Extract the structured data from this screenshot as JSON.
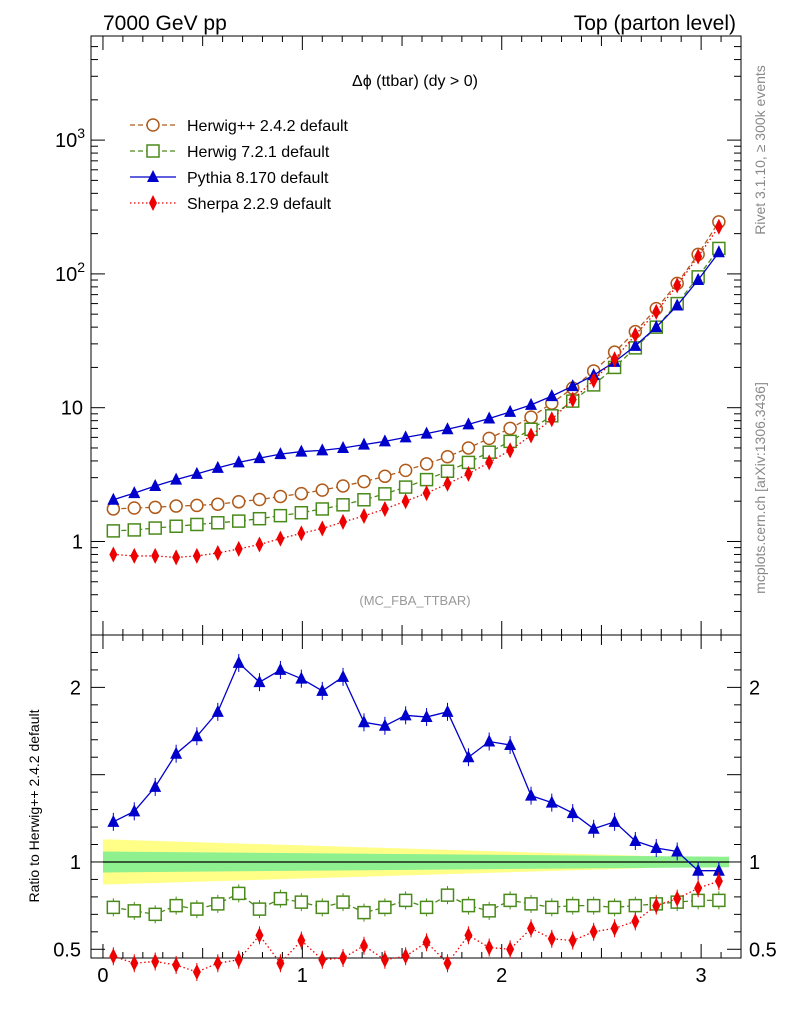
{
  "header": {
    "left": "7000 GeV pp",
    "right": "Top (parton level)"
  },
  "side_text": {
    "rivet": "Rivet 3.1.10, ≥ 300k events",
    "mcplots": "mcplots.cern.ch [arXiv:1306.3436]"
  },
  "watermark": "(MC_FBA_TTBAR)",
  "chart_data": [
    {
      "type": "line",
      "title": "Δϕ (ttbar) (dy > 0)",
      "yscale": "log",
      "ylim": [
        0.2,
        6000
      ],
      "xlim": [
        -0.06,
        3.2
      ],
      "legend_placement": "top-left",
      "yticks": [
        {
          "value": 1,
          "label": "1"
        },
        {
          "value": 10,
          "label": "10"
        },
        {
          "value": 100,
          "label": "10",
          "sup": "2"
        },
        {
          "value": 1000,
          "label": "10",
          "sup": "3"
        }
      ],
      "x": [
        0.052,
        0.157,
        0.262,
        0.367,
        0.471,
        0.576,
        0.681,
        0.785,
        0.89,
        0.995,
        1.1,
        1.204,
        1.309,
        1.414,
        1.518,
        1.623,
        1.728,
        1.833,
        1.937,
        2.042,
        2.147,
        2.251,
        2.356,
        2.461,
        2.566,
        2.67,
        2.775,
        2.88,
        2.985,
        3.089
      ],
      "series": [
        {
          "name": "Herwig++ 2.4.2 default",
          "color": "#b05a1a",
          "marker": "open-circle",
          "style": "dashed",
          "values": [
            1.75,
            1.78,
            1.8,
            1.84,
            1.86,
            1.9,
            1.98,
            2.06,
            2.17,
            2.28,
            2.42,
            2.6,
            2.8,
            3.07,
            3.4,
            3.8,
            4.3,
            5.0,
            5.9,
            7.0,
            8.5,
            10.8,
            14.0,
            18.8,
            26.0,
            37.0,
            55.0,
            85.0,
            140.0,
            245.0
          ]
        },
        {
          "name": "Herwig 7.2.1 default",
          "color": "#4a8a1a",
          "marker": "open-square",
          "style": "dashed",
          "values": [
            1.2,
            1.22,
            1.26,
            1.3,
            1.34,
            1.38,
            1.42,
            1.48,
            1.56,
            1.64,
            1.75,
            1.88,
            2.05,
            2.27,
            2.55,
            2.9,
            3.35,
            3.9,
            4.65,
            5.6,
            6.9,
            8.7,
            11.2,
            14.8,
            20.0,
            28.0,
            40.0,
            60.0,
            95.0,
            155.0
          ]
        },
        {
          "name": "Pythia 8.170 default",
          "color": "#0000cc",
          "marker": "filled-triangle",
          "style": "solid",
          "values": [
            2.05,
            2.3,
            2.6,
            2.9,
            3.2,
            3.55,
            3.9,
            4.2,
            4.5,
            4.7,
            4.8,
            5.0,
            5.3,
            5.6,
            6.0,
            6.4,
            6.9,
            7.5,
            8.3,
            9.3,
            10.5,
            12.2,
            14.5,
            17.5,
            22.0,
            29.0,
            40.0,
            58.0,
            90.0,
            145.0
          ]
        },
        {
          "name": "Sherpa 2.2.9 default",
          "color": "#ee0000",
          "marker": "filled-diamond",
          "style": "dotted",
          "values": [
            0.8,
            0.78,
            0.78,
            0.76,
            0.78,
            0.82,
            0.88,
            0.95,
            1.05,
            1.15,
            1.25,
            1.4,
            1.55,
            1.75,
            2.0,
            2.3,
            2.7,
            3.2,
            3.9,
            4.8,
            6.2,
            8.2,
            11.5,
            16.0,
            23.0,
            35.0,
            52.0,
            82.0,
            135.0,
            225.0
          ]
        }
      ]
    },
    {
      "type": "line",
      "ylabel": "Ratio to Herwig++ 2.4.2 default",
      "xlabel": "",
      "ylim": [
        0.45,
        2.3
      ],
      "xlim": [
        -0.06,
        3.2
      ],
      "yticks": [
        {
          "value": 0.5,
          "label": "0.5"
        },
        {
          "value": 1,
          "label": "1"
        },
        {
          "value": 2,
          "label": "2"
        }
      ],
      "xticks": [
        {
          "value": 0,
          "label": "0"
        },
        {
          "value": 1,
          "label": "1"
        },
        {
          "value": 2,
          "label": "2"
        },
        {
          "value": 3,
          "label": "3"
        }
      ],
      "band_inner": [
        0.06,
        0.03
      ],
      "band_outer": [
        0.13,
        0.02
      ],
      "series": [
        {
          "name": "Pythia 8.170 default",
          "color": "#0000cc",
          "marker": "filled-triangle",
          "style": "solid",
          "values": [
            1.23,
            1.29,
            1.43,
            1.62,
            1.72,
            1.86,
            2.14,
            2.03,
            2.1,
            2.05,
            1.98,
            2.06,
            1.8,
            1.78,
            1.84,
            1.83,
            1.86,
            1.6,
            1.69,
            1.67,
            1.38,
            1.34,
            1.28,
            1.19,
            1.23,
            1.12,
            1.08,
            1.06,
            0.95,
            0.95
          ]
        },
        {
          "name": "Herwig 7.2.1 default",
          "color": "#4a8a1a",
          "marker": "open-square",
          "style": "dashed",
          "values": [
            0.74,
            0.72,
            0.7,
            0.75,
            0.73,
            0.76,
            0.82,
            0.73,
            0.79,
            0.77,
            0.74,
            0.77,
            0.71,
            0.74,
            0.78,
            0.74,
            0.81,
            0.75,
            0.72,
            0.78,
            0.76,
            0.74,
            0.75,
            0.75,
            0.74,
            0.75,
            0.76,
            0.77,
            0.78,
            0.78
          ]
        },
        {
          "name": "Sherpa 2.2.9 default",
          "color": "#ee0000",
          "marker": "filled-diamond",
          "style": "dotted",
          "values": [
            0.46,
            0.42,
            0.43,
            0.41,
            0.37,
            0.42,
            0.44,
            0.58,
            0.42,
            0.55,
            0.44,
            0.45,
            0.52,
            0.44,
            0.46,
            0.54,
            0.42,
            0.58,
            0.51,
            0.5,
            0.62,
            0.56,
            0.55,
            0.6,
            0.62,
            0.66,
            0.75,
            0.79,
            0.85,
            0.89
          ]
        }
      ]
    }
  ]
}
